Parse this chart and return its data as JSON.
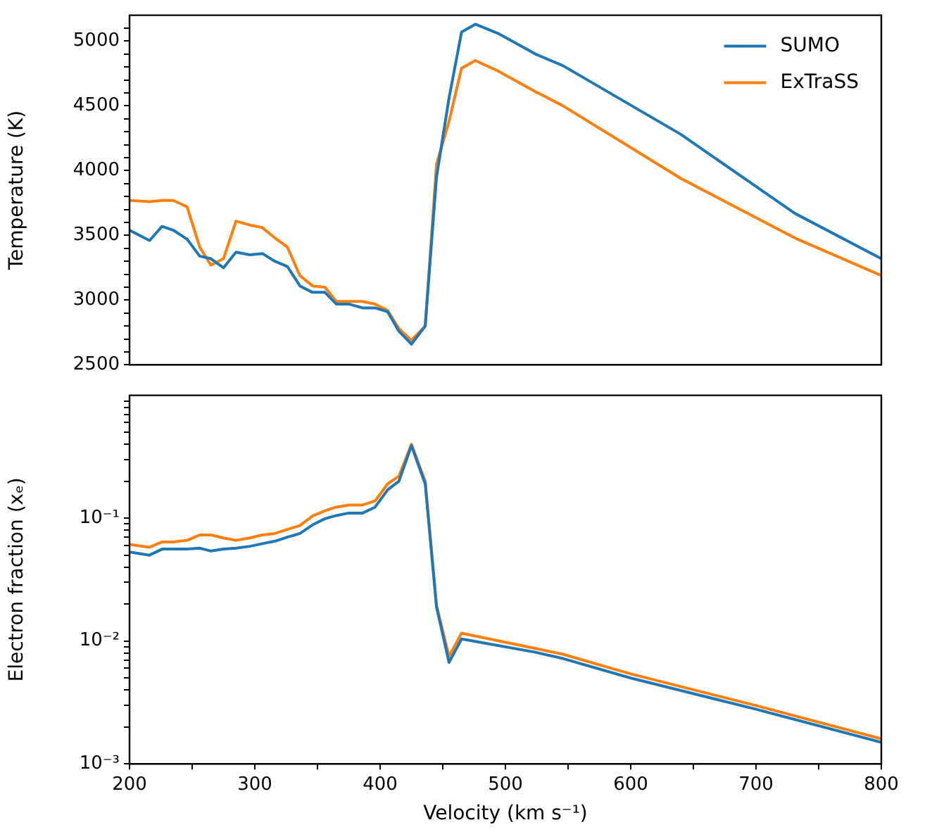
{
  "chart_data": [
    {
      "type": "line",
      "ylabel": "Temperature (K)",
      "legend": "top right",
      "tick_labels": "y",
      "xlim": [
        200,
        800
      ],
      "ylim": [
        2500,
        5200
      ],
      "yticks": [
        2500,
        {
          "value": 2600,
          "label": null
        },
        {
          "value": 2700,
          "label": null
        },
        {
          "value": 2800,
          "label": null
        },
        {
          "value": 2900,
          "label": null
        },
        3000,
        {
          "value": 3100,
          "label": null
        },
        {
          "value": 3200,
          "label": null
        },
        {
          "value": 3300,
          "label": null
        },
        {
          "value": 3400,
          "label": null
        },
        3500,
        {
          "value": 3600,
          "label": null
        },
        {
          "value": 3700,
          "label": null
        },
        {
          "value": 3800,
          "label": null
        },
        {
          "value": 3900,
          "label": null
        },
        4000,
        {
          "value": 4100,
          "label": null
        },
        {
          "value": 4200,
          "label": null
        },
        {
          "value": 4300,
          "label": null
        },
        {
          "value": 4400,
          "label": null
        },
        4500,
        {
          "value": 4600,
          "label": null
        },
        {
          "value": 4700,
          "label": null
        },
        {
          "value": 4800,
          "label": null
        },
        {
          "value": 4900,
          "label": null
        },
        5000,
        {
          "value": 5100,
          "label": null
        }
      ],
      "series": [
        {
          "name": "SUMO",
          "color": "#1f77b4",
          "x": [
            200,
            216,
            226,
            235,
            246,
            256,
            265,
            275,
            285,
            296,
            306,
            316,
            326,
            336,
            346,
            356,
            365,
            375,
            386,
            396,
            406,
            415,
            425,
            436,
            445,
            455,
            465,
            476,
            494,
            524,
            546,
            640,
            731,
            800
          ],
          "values": [
            3540,
            3460,
            3570,
            3540,
            3470,
            3340,
            3320,
            3250,
            3370,
            3350,
            3360,
            3300,
            3260,
            3110,
            3060,
            3060,
            2970,
            2970,
            2940,
            2940,
            2910,
            2760,
            2660,
            2800,
            3950,
            4560,
            5070,
            5130,
            5060,
            4900,
            4810,
            4280,
            3670,
            3320
          ]
        },
        {
          "name": "ExTraSS",
          "color": "#ff7f0e",
          "x": [
            200,
            216,
            226,
            235,
            246,
            256,
            265,
            275,
            285,
            296,
            306,
            316,
            326,
            336,
            346,
            356,
            365,
            375,
            386,
            396,
            406,
            415,
            425,
            436,
            445,
            455,
            465,
            476,
            494,
            524,
            546,
            640,
            731,
            800
          ],
          "values": [
            3770,
            3760,
            3770,
            3770,
            3720,
            3410,
            3270,
            3320,
            3610,
            3580,
            3560,
            3480,
            3410,
            3190,
            3110,
            3100,
            2990,
            2990,
            2990,
            2970,
            2920,
            2780,
            2690,
            2800,
            4050,
            4380,
            4790,
            4850,
            4770,
            4610,
            4500,
            3940,
            3480,
            3190
          ]
        }
      ]
    },
    {
      "type": "line",
      "xlabel": "Velocity (km s⁻¹)",
      "ylabel": "Electron fraction (xₑ)",
      "log": true,
      "xlim": [
        200,
        800
      ],
      "xticks": [
        200,
        {
          "value": 250,
          "label": null
        },
        300,
        {
          "value": 350,
          "label": null
        },
        400,
        {
          "value": 450,
          "label": null
        },
        500,
        {
          "value": 550,
          "label": null
        },
        600,
        {
          "value": 650,
          "label": null
        },
        700,
        {
          "value": 750,
          "label": null
        },
        800
      ],
      "ylim": [
        0.001,
        1
      ],
      "yticks": [
        {
          "value": 0.001,
          "label": "10⁻³"
        },
        {
          "value": 0.002,
          "label": null
        },
        {
          "value": 0.003,
          "label": null
        },
        {
          "value": 0.004,
          "label": null
        },
        {
          "value": 0.005,
          "label": null
        },
        {
          "value": 0.006,
          "label": null
        },
        {
          "value": 0.007,
          "label": null
        },
        {
          "value": 0.008,
          "label": null
        },
        {
          "value": 0.009,
          "label": null
        },
        {
          "value": 0.01,
          "label": "10⁻²"
        },
        {
          "value": 0.02,
          "label": null
        },
        {
          "value": 0.03,
          "label": null
        },
        {
          "value": 0.04,
          "label": null
        },
        {
          "value": 0.05,
          "label": null
        },
        {
          "value": 0.06,
          "label": null
        },
        {
          "value": 0.07,
          "label": null
        },
        {
          "value": 0.08,
          "label": null
        },
        {
          "value": 0.09,
          "label": null
        },
        {
          "value": 0.1,
          "label": "10⁻¹"
        },
        {
          "value": 0.2,
          "label": null
        },
        {
          "value": 0.3,
          "label": null
        },
        {
          "value": 0.4,
          "label": null
        },
        {
          "value": 0.5,
          "label": null
        },
        {
          "value": 0.6,
          "label": null
        },
        {
          "value": 0.7,
          "label": null
        },
        {
          "value": 0.8,
          "label": null
        },
        {
          "value": 0.9,
          "label": null
        }
      ],
      "series": [
        {
          "color": "#1f77b4",
          "x": [
            200,
            216,
            226,
            235,
            246,
            256,
            265,
            275,
            285,
            296,
            306,
            316,
            326,
            336,
            346,
            356,
            365,
            375,
            386,
            396,
            406,
            415,
            425,
            436,
            445,
            455,
            465,
            524,
            546,
            600,
            699,
            800
          ],
          "values": [
            0.053,
            0.05,
            0.056,
            0.056,
            0.056,
            0.057,
            0.054,
            0.056,
            0.057,
            0.059,
            0.062,
            0.065,
            0.07,
            0.075,
            0.088,
            0.099,
            0.105,
            0.11,
            0.11,
            0.123,
            0.17,
            0.2,
            0.39,
            0.19,
            0.019,
            0.0067,
            0.0104,
            0.0081,
            0.0072,
            0.005,
            0.0028,
            0.0015
          ]
        },
        {
          "color": "#ff7f0e",
          "x": [
            200,
            216,
            226,
            235,
            246,
            256,
            265,
            275,
            285,
            296,
            306,
            316,
            326,
            336,
            346,
            356,
            365,
            375,
            386,
            396,
            406,
            415,
            425,
            436,
            445,
            455,
            465,
            524,
            546,
            600,
            699,
            800
          ],
          "values": [
            0.061,
            0.058,
            0.064,
            0.064,
            0.066,
            0.073,
            0.073,
            0.069,
            0.066,
            0.069,
            0.073,
            0.075,
            0.081,
            0.087,
            0.104,
            0.115,
            0.123,
            0.128,
            0.128,
            0.138,
            0.19,
            0.22,
            0.4,
            0.2,
            0.0195,
            0.0075,
            0.0116,
            0.0087,
            0.0078,
            0.0054,
            0.003,
            0.0016
          ]
        }
      ]
    }
  ]
}
